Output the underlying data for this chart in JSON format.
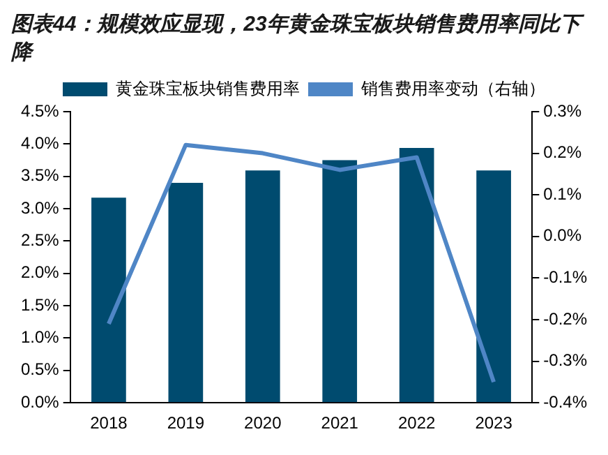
{
  "chart_data": {
    "type": "bar",
    "title": "图表44：规模效应显现，23年黄金珠宝板块销售费用率同比下降",
    "categories": [
      "2018",
      "2019",
      "2020",
      "2021",
      "2022",
      "2023"
    ],
    "series": [
      {
        "name": "黄金珠宝板块销售费用率",
        "color": "#004b6f",
        "values": [
          3.17,
          3.4,
          3.59,
          3.75,
          3.94,
          3.59
        ]
      },
      {
        "name": "销售费用率变动（右轴）",
        "type": "line",
        "axis": "y2",
        "color": "#4f86c6",
        "values": [
          -0.21,
          0.22,
          0.2,
          0.16,
          0.19,
          -0.35
        ]
      }
    ],
    "ylim": [
      0,
      4.5
    ],
    "yticks": [
      {
        "value": 0,
        "label": "0.0%"
      },
      {
        "value": 0.5,
        "label": "0.5%"
      },
      {
        "value": 1,
        "label": "1.0%"
      },
      {
        "value": 1.5,
        "label": "1.5%"
      },
      {
        "value": 2,
        "label": "2.0%"
      },
      {
        "value": 2.5,
        "label": "2.5%"
      },
      {
        "value": 3,
        "label": "3.0%"
      },
      {
        "value": 3.5,
        "label": "3.5%"
      },
      {
        "value": 4,
        "label": "4.0%"
      },
      {
        "value": 4.5,
        "label": "4.5%"
      }
    ],
    "y2lim": [
      -0.4,
      0.3
    ],
    "y2ticks": [
      {
        "value": -0.4,
        "label": "-0.4%"
      },
      {
        "value": -0.3,
        "label": "-0.3%"
      },
      {
        "value": -0.2,
        "label": "-0.2%"
      },
      {
        "value": -0.1,
        "label": "-0.1%"
      },
      {
        "value": 0,
        "label": "0.0%"
      },
      {
        "value": 0.1,
        "label": "0.1%"
      },
      {
        "value": 0.2,
        "label": "0.2%"
      },
      {
        "value": 0.3,
        "label": "0.3%"
      }
    ],
    "legend": "top",
    "grid": false,
    "marker": "none"
  }
}
